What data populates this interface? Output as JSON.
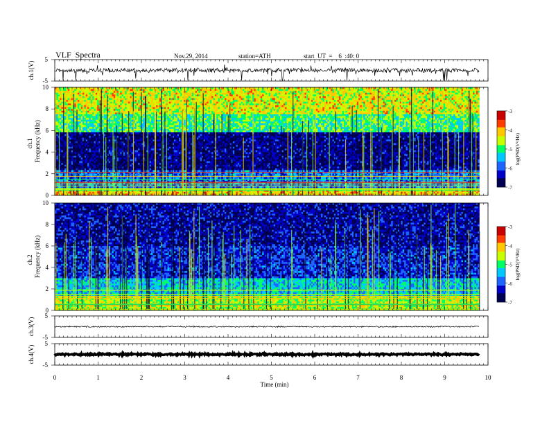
{
  "header": {
    "title": "VLF  Spectra",
    "date": "Nov.29, 2014",
    "station": "station=ATH",
    "start": "start  UT  =    6  :40: 0"
  },
  "chart_data": [
    {
      "type": "line",
      "panel": "ch1-waveform",
      "ylabel": "ch.1(V)",
      "ylim": [
        -5,
        5
      ],
      "yticks": [
        "5",
        "-5"
      ],
      "xlim": [
        0,
        10
      ],
      "baseline": 0,
      "trace_extent_min": 9.8,
      "color": "#000000"
    },
    {
      "type": "heatmap",
      "panel": "ch1-spectrogram",
      "ylabel": "Frequency  (kHz)",
      "channel_label": "ch.1",
      "ylim": [
        0,
        10
      ],
      "yticks": [
        "0",
        "2",
        "4",
        "6",
        "8",
        "10"
      ],
      "xlim": [
        0,
        10
      ],
      "data_extent_min": 9.8,
      "bands_logPSD": [
        {
          "from_khz": 0,
          "to_khz": 0.6,
          "value": -4.2
        },
        {
          "from_khz": 0.6,
          "to_khz": 2.4,
          "value": -5.8
        },
        {
          "from_khz": 2.4,
          "to_khz": 5.9,
          "value": -6.6
        },
        {
          "from_khz": 5.9,
          "to_khz": 7.5,
          "value": -5.0
        },
        {
          "from_khz": 7.5,
          "to_khz": 10,
          "value": -4.4
        }
      ],
      "colorbar": {
        "label": "log(PSD(V²/Hz)",
        "range": [
          -7,
          -3
        ],
        "ticks": [
          "-3",
          "-4",
          "-5",
          "-6",
          "-7"
        ]
      }
    },
    {
      "type": "heatmap",
      "panel": "ch2-spectrogram",
      "ylabel": "Frequency  (kHz)",
      "channel_label": "ch.2",
      "ylim": [
        0,
        10
      ],
      "yticks": [
        "0",
        "2",
        "4",
        "6",
        "8",
        "10"
      ],
      "xlim": [
        0,
        10
      ],
      "data_extent_min": 9.8,
      "bands_logPSD": [
        {
          "from_khz": 0,
          "to_khz": 1.4,
          "value": -4.6
        },
        {
          "from_khz": 1.4,
          "to_khz": 3.0,
          "value": -5.4
        },
        {
          "from_khz": 3.0,
          "to_khz": 6.0,
          "value": -6.2
        },
        {
          "from_khz": 6.0,
          "to_khz": 10,
          "value": -6.5
        }
      ],
      "colorbar": {
        "label": "log(PSD(V²/Hz)",
        "range": [
          -7,
          -3
        ],
        "ticks": [
          "-3",
          "-4",
          "-5",
          "-6",
          "-7"
        ]
      }
    },
    {
      "type": "line",
      "panel": "ch3-waveform",
      "ylabel": "ch.3(V)",
      "ylim": [
        -5,
        5
      ],
      "yticks": [
        "5",
        "-5"
      ],
      "xlim": [
        0,
        10
      ],
      "baseline": 0,
      "trace_extent_min": 9.8,
      "color": "#000000"
    },
    {
      "type": "line",
      "panel": "ch4-waveform",
      "ylabel": "ch.4(V)",
      "ylim": [
        -5,
        5
      ],
      "yticks": [
        "5",
        "-5"
      ],
      "xlim": [
        0,
        10
      ],
      "baseline": 0,
      "trace_extent_min": 9.8,
      "color": "#000000"
    }
  ],
  "xaxis": {
    "label": "Time  (min)",
    "ticks": [
      "0",
      "1",
      "2",
      "3",
      "4",
      "5",
      "6",
      "7",
      "8",
      "9",
      "10"
    ]
  },
  "colormap": [
    "#000050",
    "#0000c8",
    "#1e64ff",
    "#00c8ff",
    "#00ff64",
    "#c8ff00",
    "#ffc800",
    "#ff3c00",
    "#c80000",
    "#ffffff"
  ]
}
